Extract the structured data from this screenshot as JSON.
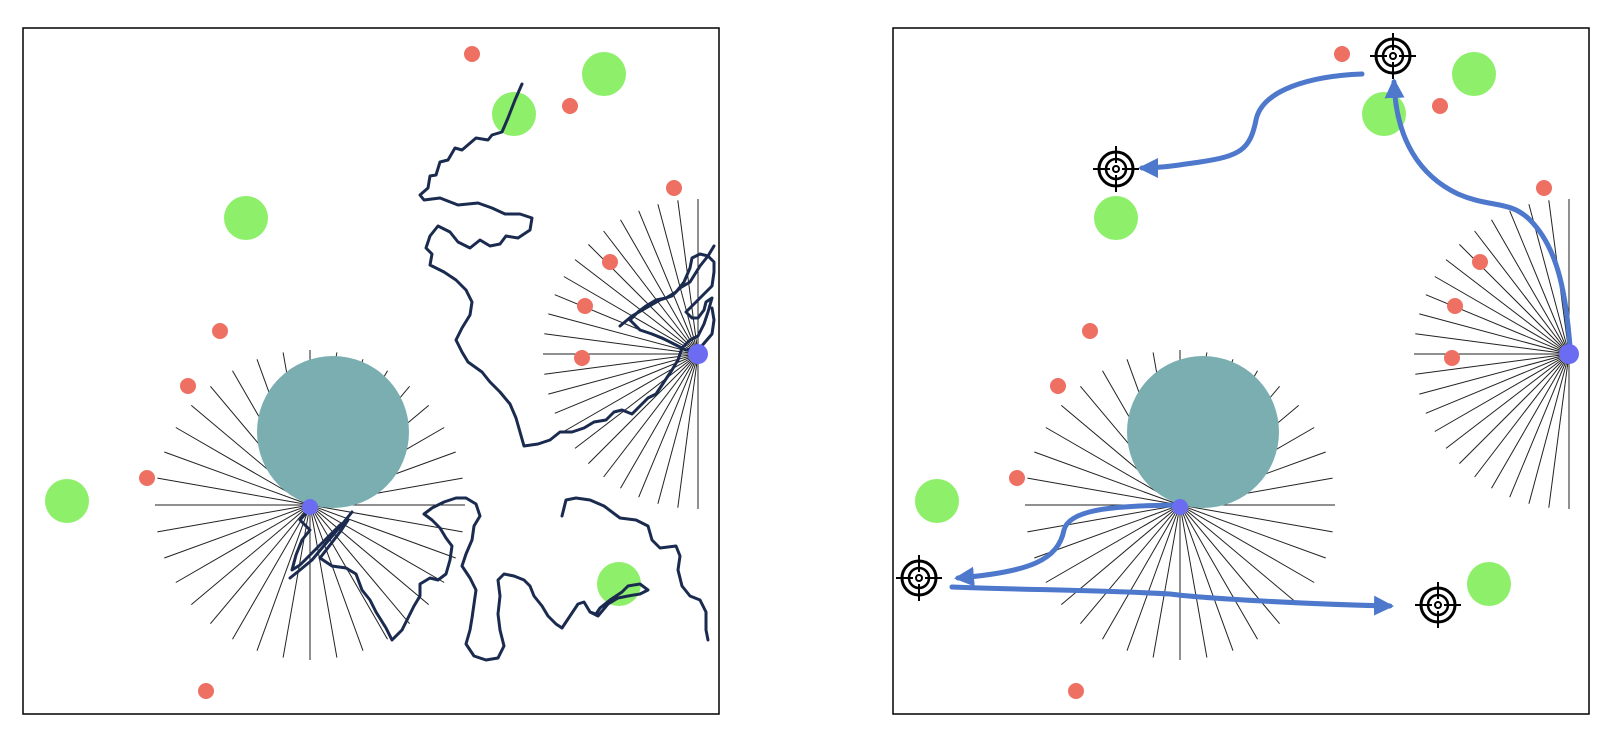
{
  "colors": {
    "frame": "#000000",
    "background": "#ffffff",
    "obstacle": "#7aaeb0",
    "green_region": "#8ef06a",
    "red_point": "#ee7063",
    "agent": "#6b6cf2",
    "ray": "#222222",
    "trajectory": "#1a2b4f",
    "route": "#4d78cc",
    "target": "#000000"
  },
  "icons": {
    "target": "crosshair-target-icon"
  },
  "panels": [
    {
      "id": "left",
      "content": "random-walk-trajectories"
    },
    {
      "id": "right",
      "content": "goal-directed-routes"
    }
  ]
}
